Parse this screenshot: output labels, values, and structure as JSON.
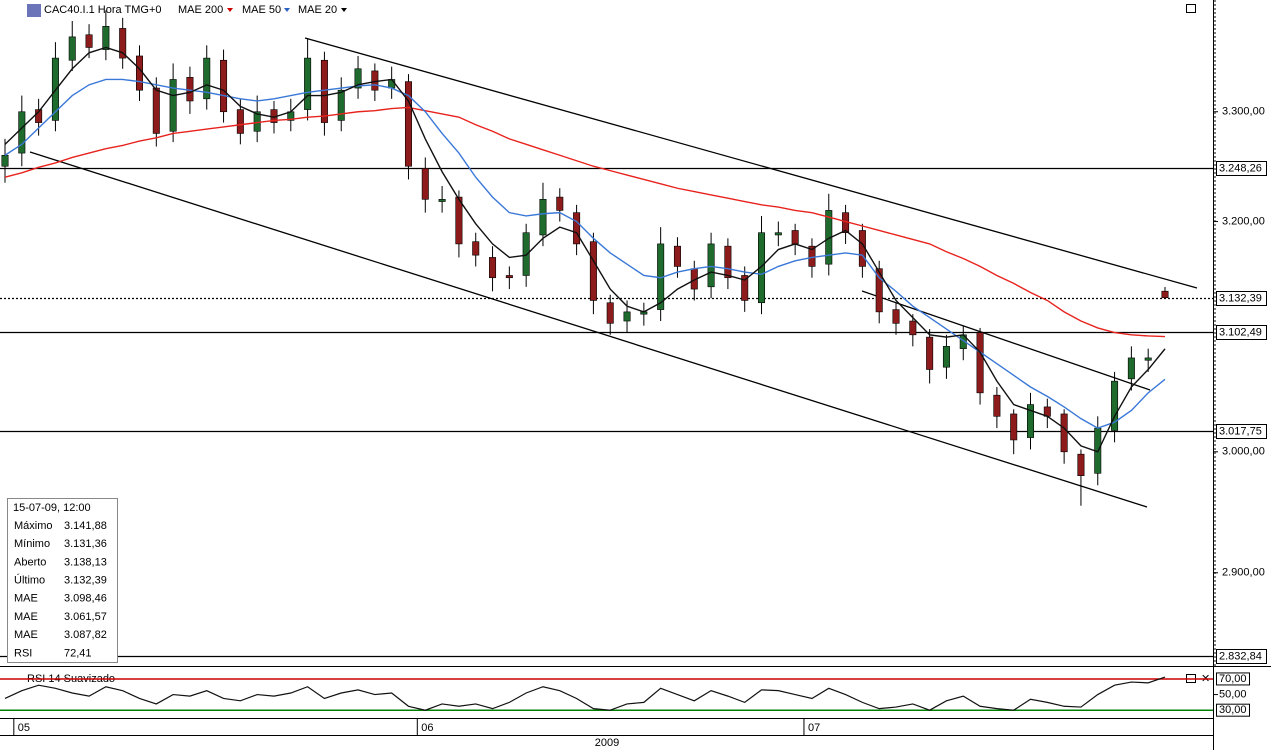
{
  "chart_data": {
    "type": "candlestick",
    "title": "CAC40.I.1 Hora TMG+0",
    "categories": [
      null,
      "05",
      null,
      null,
      null,
      null,
      null,
      null,
      null,
      null,
      null,
      null,
      null,
      null,
      null,
      null,
      null,
      null,
      null,
      null,
      null,
      null,
      null,
      null,
      null,
      "06",
      null,
      null,
      null,
      null,
      null,
      null,
      null,
      null,
      null,
      null,
      null,
      null,
      null,
      null,
      null,
      null,
      null,
      null,
      null,
      null,
      null,
      null,
      "07",
      null,
      null,
      null,
      null,
      null,
      null,
      null,
      null,
      null,
      null,
      null,
      null,
      null,
      null,
      null,
      null,
      null,
      null,
      null,
      null,
      null
    ],
    "x_year_label": "2009",
    "open": [
      3250,
      3262,
      3302,
      3292,
      3348,
      3372,
      3358,
      3378,
      3352,
      3322,
      3282,
      3332,
      3312,
      3348,
      3302,
      3282,
      3302,
      3292,
      3302,
      3348,
      3292,
      3322,
      3338,
      3322,
      3328,
      3248,
      3218,
      3222,
      3182,
      3168,
      3152,
      3152,
      3188,
      3222,
      3208,
      3182,
      3128,
      3112,
      3118,
      3122,
      3178,
      3158,
      3142,
      3178,
      3152,
      3128,
      3188,
      3192,
      3178,
      3162,
      3208,
      3192,
      3158,
      3122,
      3112,
      3098,
      3072,
      3088,
      3102,
      3048,
      3032,
      3012,
      3038,
      3032,
      2998,
      2982,
      3018,
      3062,
      3078,
      3138.13
    ],
    "high": [
      3275,
      3315,
      3312,
      3365,
      3385,
      3382,
      3395,
      3388,
      3362,
      3332,
      3345,
      3342,
      3362,
      3358,
      3312,
      3315,
      3310,
      3312,
      3368,
      3356,
      3332,
      3352,
      3345,
      3342,
      3335,
      3258,
      3232,
      3228,
      3190,
      3178,
      3160,
      3198,
      3235,
      3230,
      3215,
      3190,
      3135,
      3130,
      3128,
      3195,
      3186,
      3165,
      3190,
      3185,
      3160,
      3205,
      3200,
      3198,
      3185,
      3225,
      3215,
      3198,
      3165,
      3128,
      3118,
      3105,
      3100,
      3108,
      3106,
      3055,
      3036,
      3050,
      3045,
      3036,
      3002,
      3030,
      3068,
      3090,
      3088,
      3141.88
    ],
    "low": [
      3235,
      3250,
      3278,
      3282,
      3338,
      3350,
      3348,
      3340,
      3310,
      3268,
      3272,
      3298,
      3302,
      3290,
      3270,
      3272,
      3280,
      3282,
      3292,
      3278,
      3282,
      3312,
      3310,
      3312,
      3238,
      3208,
      3208,
      3168,
      3160,
      3138,
      3140,
      3142,
      3178,
      3200,
      3170,
      3118,
      3100,
      3102,
      3108,
      3112,
      3150,
      3130,
      3132,
      3140,
      3120,
      3118,
      3178,
      3170,
      3150,
      3152,
      3180,
      3150,
      3110,
      3100,
      3090,
      3058,
      3062,
      3078,
      3040,
      3020,
      2998,
      3002,
      3020,
      2990,
      2955,
      2972,
      3008,
      3052,
      3068,
      3131.36
    ],
    "close": [
      3260,
      3300,
      3290,
      3350,
      3370,
      3360,
      3380,
      3350,
      3320,
      3280,
      3330,
      3310,
      3350,
      3300,
      3280,
      3300,
      3290,
      3300,
      3350,
      3290,
      3320,
      3340,
      3320,
      3330,
      3250,
      3220,
      3220,
      3180,
      3170,
      3150,
      3150,
      3190,
      3220,
      3210,
      3180,
      3130,
      3110,
      3120,
      3120,
      3180,
      3160,
      3140,
      3180,
      3150,
      3130,
      3190,
      3190,
      3180,
      3160,
      3210,
      3190,
      3160,
      3120,
      3110,
      3100,
      3070,
      3090,
      3100,
      3050,
      3030,
      3010,
      3040,
      3030,
      3000,
      2980,
      3020,
      3060,
      3080,
      3080,
      3132.39
    ],
    "up_color": "#1f6b2e",
    "down_color": "#8e1b1b",
    "series": [
      {
        "name": "MAE 200",
        "color": "#e8231e",
        "values": [
          3240,
          3244,
          3249,
          3253,
          3258,
          3262,
          3266,
          3269,
          3273,
          3276,
          3280,
          3282,
          3284,
          3286,
          3288,
          3290,
          3292,
          3293,
          3295,
          3296,
          3298,
          3300,
          3301,
          3303,
          3304,
          3301,
          3298,
          3295,
          3288,
          3282,
          3275,
          3270,
          3265,
          3260,
          3255,
          3250,
          3246,
          3242,
          3238,
          3234,
          3230,
          3227,
          3224,
          3221,
          3218,
          3215,
          3213,
          3210,
          3208,
          3204,
          3200,
          3196,
          3192,
          3188,
          3184,
          3180,
          3173,
          3167,
          3160,
          3152,
          3145,
          3137,
          3130,
          3120,
          3112,
          3106,
          3102,
          3100,
          3099,
          3098.46
        ]
      },
      {
        "name": "MAE 50",
        "color": "#3a78d8",
        "values": [
          3260,
          3270,
          3285,
          3300,
          3315,
          3325,
          3330,
          3330,
          3328,
          3325,
          3322,
          3320,
          3318,
          3315,
          3312,
          3310,
          3312,
          3315,
          3318,
          3320,
          3322,
          3324,
          3325,
          3322,
          3315,
          3300,
          3280,
          3262,
          3240,
          3222,
          3208,
          3205,
          3207,
          3208,
          3200,
          3185,
          3172,
          3162,
          3152,
          3150,
          3155,
          3158,
          3160,
          3158,
          3155,
          3153,
          3160,
          3165,
          3168,
          3170,
          3172,
          3170,
          3150,
          3138,
          3125,
          3115,
          3105,
          3095,
          3085,
          3075,
          3065,
          3055,
          3047,
          3038,
          3028,
          3020,
          3025,
          3035,
          3050,
          3061.57
        ]
      },
      {
        "name": "MAE 20",
        "color": "#111111",
        "values": [
          3270,
          3285,
          3300,
          3320,
          3340,
          3355,
          3360,
          3355,
          3340,
          3320,
          3315,
          3318,
          3325,
          3320,
          3305,
          3298,
          3295,
          3300,
          3315,
          3315,
          3318,
          3325,
          3328,
          3330,
          3310,
          3275,
          3245,
          3220,
          3198,
          3180,
          3168,
          3170,
          3185,
          3195,
          3190,
          3165,
          3140,
          3125,
          3120,
          3128,
          3140,
          3148,
          3155,
          3152,
          3148,
          3160,
          3175,
          3180,
          3175,
          3185,
          3192,
          3180,
          3155,
          3130,
          3115,
          3100,
          3098,
          3100,
          3085,
          3060,
          3040,
          3035,
          3030,
          3020,
          3005,
          3000,
          3030,
          3055,
          3070,
          3087.82
        ]
      }
    ],
    "ylim": [
      2826,
      3405
    ],
    "log_scale": true,
    "yticks": [
      {
        "value": 3300,
        "label": "3.300,00"
      },
      {
        "value": 3200,
        "label": "3.200,00"
      },
      {
        "value": 3000,
        "label": "3.000,00"
      },
      {
        "value": 2900,
        "label": "2.900,00"
      }
    ],
    "levels": [
      {
        "value": 3248.26,
        "label": "3.248,26",
        "style": "solid",
        "color": "#000000"
      },
      {
        "value": 3132.39,
        "label": "3.132,39",
        "style": "dotted",
        "color": "#008000"
      },
      {
        "value": 3102.49,
        "label": "3.102,49",
        "style": "solid",
        "color": "#000000"
      },
      {
        "value": 3017.75,
        "label": "3.017,75",
        "style": "solid",
        "color": "#000000"
      },
      {
        "value": 2832.84,
        "label": "2.832,84",
        "style": "solid",
        "color": "#000000"
      }
    ],
    "info_panel": {
      "title": "15-07-09, 12:00",
      "rows": [
        {
          "label": "Máximo",
          "value": "3.141,88",
          "color": "#000000"
        },
        {
          "label": "Mínimo",
          "value": "3.131,36",
          "color": "#000000"
        },
        {
          "label": "Aberto",
          "value": "3.138,13",
          "color": "#000000"
        },
        {
          "label": "Último",
          "value": "3.132,39",
          "color": "#000000"
        },
        {
          "label": "MAE",
          "value": "3.098,46",
          "color": "#cc0000"
        },
        {
          "label": "MAE",
          "value": "3.061,57",
          "color": "#2a62c4"
        },
        {
          "label": "MAE",
          "value": "3.087,82",
          "color": "#000000"
        },
        {
          "label": "RSI",
          "value": "72,41",
          "color": "#000000"
        }
      ]
    },
    "rsi": {
      "name": "RSI 14 Suavizado",
      "color": "#111111",
      "values": [
        45,
        55,
        62,
        58,
        52,
        48,
        60,
        55,
        45,
        38,
        50,
        48,
        55,
        45,
        42,
        50,
        48,
        52,
        60,
        45,
        52,
        56,
        50,
        52,
        35,
        30,
        38,
        35,
        38,
        32,
        40,
        52,
        60,
        55,
        45,
        32,
        30,
        38,
        40,
        58,
        50,
        42,
        55,
        48,
        40,
        56,
        55,
        50,
        45,
        58,
        50,
        40,
        32,
        34,
        38,
        30,
        42,
        48,
        35,
        32,
        30,
        44,
        40,
        35,
        34,
        50,
        62,
        66,
        65,
        72.41
      ],
      "ylim": [
        20,
        84
      ],
      "yticks": [
        {
          "value": 70,
          "label": "70,00",
          "color": "#cc0000"
        },
        {
          "value": 50,
          "label": "50,00",
          "color": null
        },
        {
          "value": 30,
          "label": "30,00",
          "color": "#008000"
        }
      ]
    }
  }
}
